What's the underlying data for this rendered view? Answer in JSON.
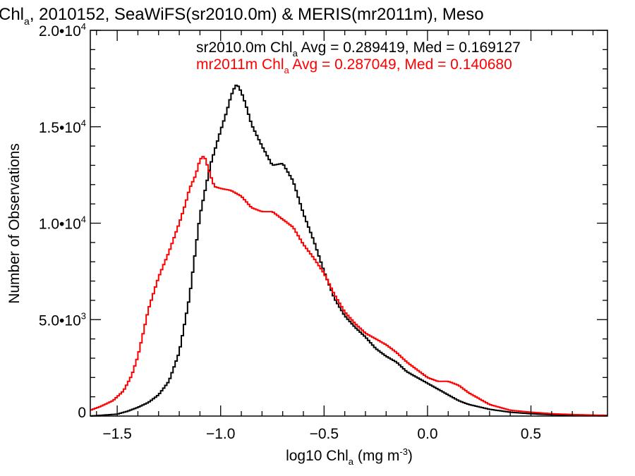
{
  "chart_data": {
    "type": "line",
    "title_parts": [
      "Chl",
      "a",
      ", 2010152, SeaWiFS(sr2010.0m) & MERIS(mr2011m), Meso"
    ],
    "xlabel_parts": [
      "log10 Chl",
      "a",
      " (mg m",
      "-3",
      ")"
    ],
    "ylabel": "Number of Observations",
    "xlim": [
      -1.63,
      0.87
    ],
    "ylim": [
      0,
      20000
    ],
    "x_ticks": [
      {
        "value": -1.5,
        "label": "−1.5"
      },
      {
        "value": -1.0,
        "label": "−1.0"
      },
      {
        "value": -0.5,
        "label": "−0.5"
      },
      {
        "value": 0.0,
        "label": "0.0"
      },
      {
        "value": 0.5,
        "label": "0.5"
      }
    ],
    "y_ticks": [
      {
        "value": 0,
        "mant": "0",
        "exp": ""
      },
      {
        "value": 5000,
        "mant": "5.0•10",
        "exp": "3"
      },
      {
        "value": 10000,
        "mant": "1.0•10",
        "exp": "4"
      },
      {
        "value": 15000,
        "mant": "1.5•10",
        "exp": "4"
      },
      {
        "value": 20000,
        "mant": "2.0•10",
        "exp": "4"
      }
    ],
    "annotations": [
      {
        "color": "#000000",
        "parts": [
          "sr2010.0m Chl",
          "a",
          " Avg = 0.289419, Med = 0.169127"
        ]
      },
      {
        "color": "#ff0000",
        "parts": [
          "mr2011m Chl",
          "a",
          " Avg = 0.287049, Med = 0.140680"
        ]
      }
    ],
    "series": [
      {
        "color": "#000000",
        "x": [
          -1.63,
          -1.5,
          -1.45,
          -1.4,
          -1.35,
          -1.3,
          -1.25,
          -1.2,
          -1.15,
          -1.1,
          -1.05,
          -1.0,
          -0.97,
          -0.95,
          -0.93,
          -0.92,
          -0.9,
          -0.88,
          -0.85,
          -0.8,
          -0.75,
          -0.7,
          -0.65,
          -0.6,
          -0.55,
          -0.5,
          -0.45,
          -0.4,
          -0.35,
          -0.3,
          -0.25,
          -0.2,
          -0.15,
          -0.1,
          -0.05,
          0.0,
          0.05,
          0.1,
          0.15,
          0.2,
          0.3,
          0.4,
          0.5,
          0.6,
          0.7,
          0.8,
          0.87
        ],
        "y": [
          0,
          100,
          250,
          450,
          700,
          1100,
          1800,
          3300,
          6200,
          10400,
          13000,
          14800,
          15800,
          16600,
          17100,
          17200,
          16800,
          16200,
          15100,
          14000,
          13000,
          13100,
          12200,
          10500,
          9100,
          7500,
          6100,
          5200,
          4600,
          4100,
          3500,
          3100,
          2800,
          2300,
          2000,
          1700,
          1400,
          1100,
          800,
          600,
          350,
          200,
          120,
          70,
          40,
          30,
          20
        ]
      },
      {
        "color": "#ff0000",
        "x": [
          -1.63,
          -1.58,
          -1.52,
          -1.47,
          -1.43,
          -1.4,
          -1.37,
          -1.35,
          -1.3,
          -1.25,
          -1.2,
          -1.17,
          -1.15,
          -1.12,
          -1.1,
          -1.08,
          -1.07,
          -1.05,
          -1.03,
          -1.0,
          -0.95,
          -0.9,
          -0.85,
          -0.8,
          -0.75,
          -0.7,
          -0.65,
          -0.6,
          -0.55,
          -0.5,
          -0.45,
          -0.4,
          -0.35,
          -0.3,
          -0.25,
          -0.2,
          -0.15,
          -0.1,
          -0.05,
          0.0,
          0.05,
          0.1,
          0.15,
          0.2,
          0.3,
          0.4,
          0.5,
          0.6,
          0.7,
          0.8,
          0.87
        ],
        "y": [
          300,
          500,
          800,
          1300,
          2100,
          3100,
          4500,
          5500,
          7200,
          8500,
          10000,
          11000,
          11800,
          12500,
          13300,
          13500,
          13200,
          12500,
          11900,
          11800,
          11700,
          11400,
          10800,
          10600,
          10600,
          10200,
          9800,
          8900,
          8200,
          7400,
          6300,
          5400,
          4800,
          4300,
          4000,
          3700,
          3300,
          2800,
          2400,
          2000,
          1800,
          1800,
          1600,
          1200,
          600,
          300,
          200,
          120,
          80,
          50,
          40
        ]
      }
    ]
  }
}
